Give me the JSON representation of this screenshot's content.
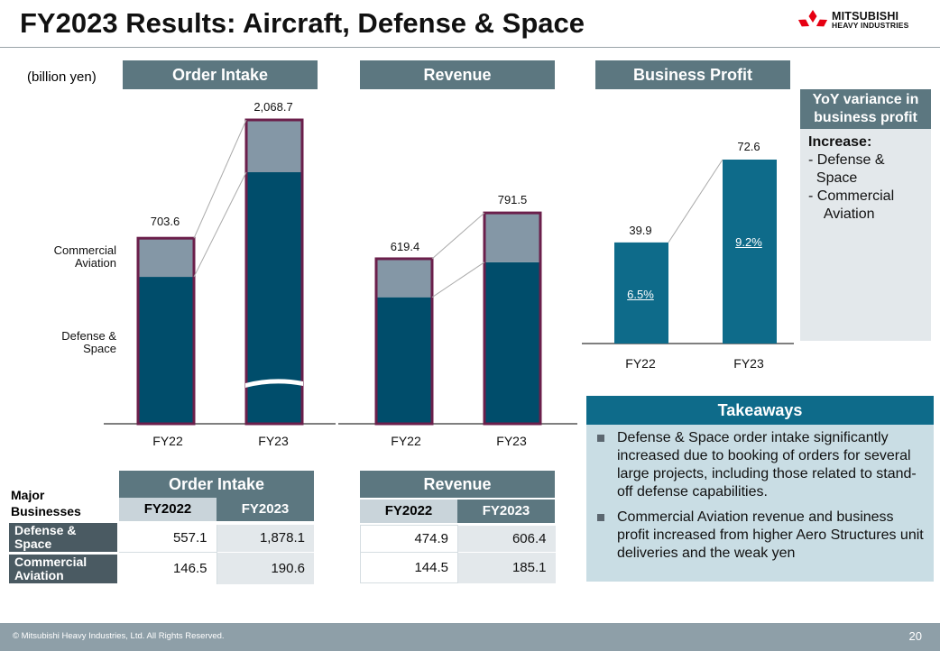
{
  "title": "FY2023 Results: Aircraft, Defense & Space",
  "logo": {
    "line1": "MITSUBISHI",
    "line2": "HEAVY INDUSTRIES"
  },
  "unit": "(billion yen)",
  "colors": {
    "header": "#5c7780",
    "defense": "#004d6b",
    "commercial": "#8497a6",
    "bar_outline": "#6b1f4b",
    "profit_bar": "#0e6b8a",
    "takeaways_header": "#0e6b8a"
  },
  "segments": {
    "commercial": "Commercial Aviation",
    "defense": "Defense & Space"
  },
  "chart_data": [
    {
      "type": "bar",
      "title": "Order Intake",
      "categories": [
        "FY22",
        "FY23"
      ],
      "series": [
        {
          "name": "Defense & Space",
          "values": [
            557.1,
            1878.1
          ]
        },
        {
          "name": "Commercial Aviation",
          "values": [
            146.5,
            190.6
          ]
        }
      ],
      "totals": [
        "703.6",
        "2,068.7"
      ],
      "axis_break": true
    },
    {
      "type": "bar",
      "title": "Revenue",
      "categories": [
        "FY22",
        "FY23"
      ],
      "series": [
        {
          "name": "Defense & Space",
          "values": [
            474.9,
            606.4
          ]
        },
        {
          "name": "Commercial Aviation",
          "values": [
            144.5,
            185.1
          ]
        }
      ],
      "totals": [
        "619.4",
        "791.5"
      ]
    },
    {
      "type": "bar",
      "title": "Business Profit",
      "categories": [
        "FY22",
        "FY23"
      ],
      "values": [
        39.9,
        72.6
      ],
      "value_labels": [
        "39.9",
        "72.6"
      ],
      "margins": [
        "6.5%",
        "9.2%"
      ]
    }
  ],
  "yoy": {
    "title_line1": "YoY variance in",
    "title_line2": "business profit",
    "heading": "Increase:",
    "items": [
      "- Defense &",
      "  Space",
      "- Commercial",
      "    Aviation"
    ]
  },
  "takeaways": {
    "title": "Takeaways",
    "bullets": [
      "Defense & Space order intake significantly increased due to booking of orders for several large projects, including those related to stand-off defense capabilities.",
      "Commercial Aviation revenue and business profit increased from higher Aero Structures unit deliveries and the weak yen"
    ]
  },
  "table": {
    "major_label": "Major Businesses",
    "order_intake": {
      "title": "Order Intake",
      "columns": [
        "FY2022",
        "FY2023"
      ],
      "rows": [
        [
          "557.1",
          "1,878.1"
        ],
        [
          "146.5",
          "190.6"
        ]
      ]
    },
    "revenue": {
      "title": "Revenue",
      "columns": [
        "FY2022",
        "FY2023"
      ],
      "rows": [
        [
          "474.9",
          "606.4"
        ],
        [
          "144.5",
          "185.1"
        ]
      ]
    },
    "row_labels": [
      "Defense & Space",
      "Commercial Aviation"
    ]
  },
  "footer": {
    "copyright": "© Mitsubishi Heavy Industries, Ltd.  All Rights Reserved.",
    "page": "20"
  }
}
